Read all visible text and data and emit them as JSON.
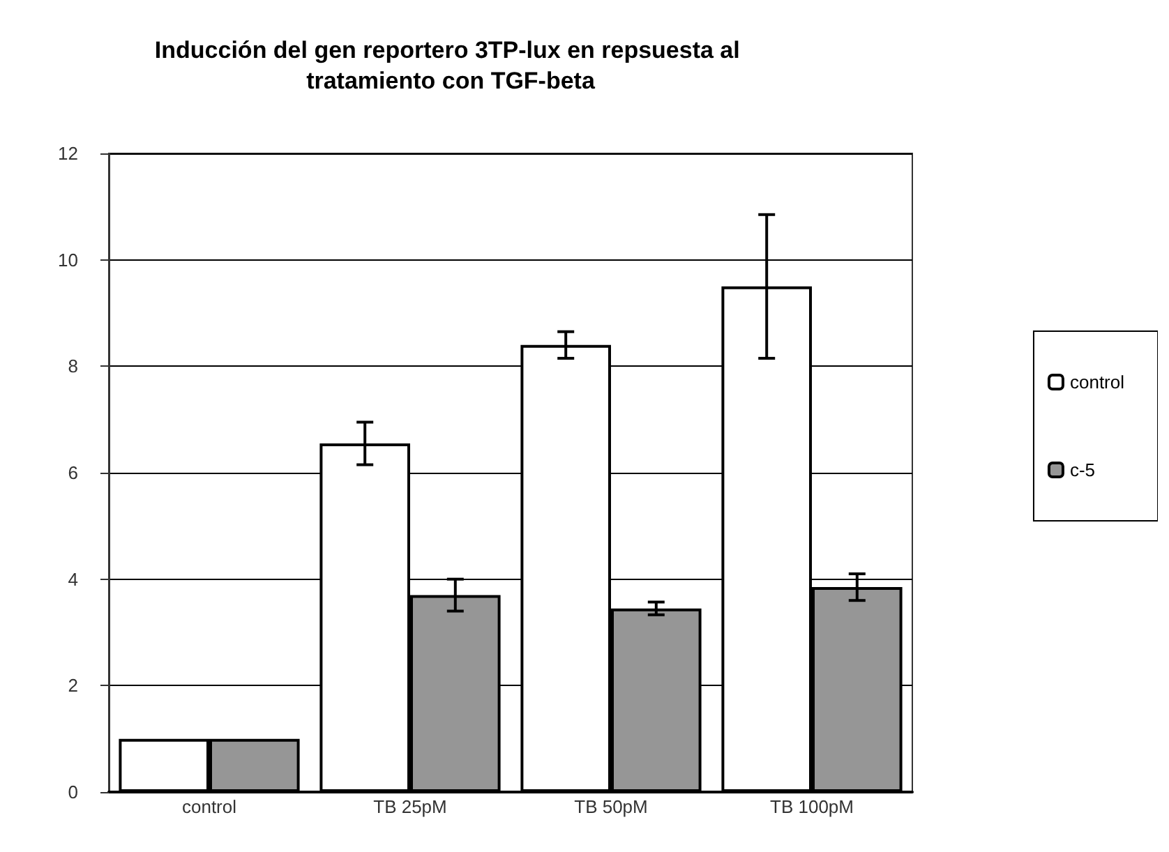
{
  "chart_data": {
    "type": "bar",
    "title": "Inducción del gen reportero 3TP-lux en repsuesta al tratamiento con TGF-beta",
    "categories": [
      "control",
      "TB 25pM",
      "TB 50pM",
      "TB 100pM"
    ],
    "series": [
      {
        "name": "control",
        "color": "#ffffff",
        "values": [
          1,
          6.55,
          8.4,
          9.5
        ],
        "errors": [
          null,
          0.4,
          0.25,
          1.35
        ]
      },
      {
        "name": "c-5",
        "color": "#969696",
        "values": [
          1,
          3.7,
          3.45,
          3.85
        ],
        "errors": [
          null,
          0.3,
          0.12,
          0.25
        ]
      }
    ],
    "ylim": [
      0,
      12
    ],
    "yticks": [
      0,
      2,
      4,
      6,
      8,
      10,
      12
    ],
    "grid": "y",
    "legend": "right"
  }
}
